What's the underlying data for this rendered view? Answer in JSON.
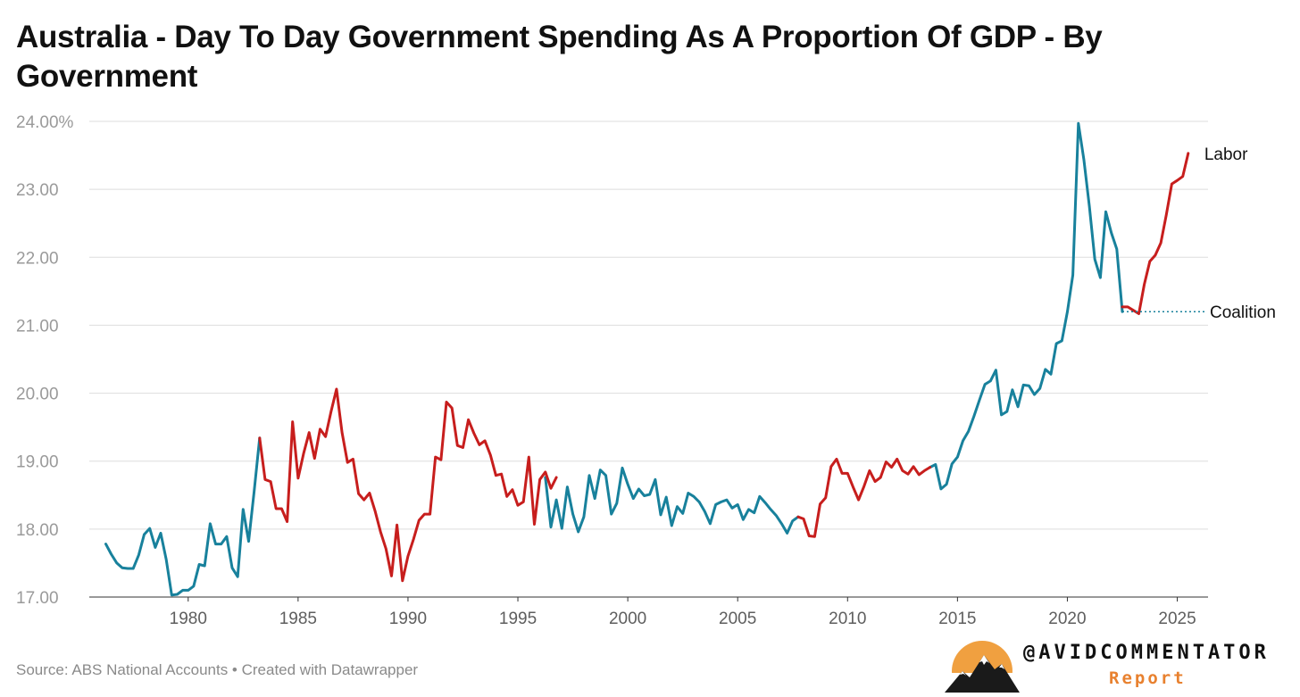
{
  "title": "Australia - Day To Day Government Spending As A Proportion Of GDP - By Government",
  "footer": {
    "source": "Source: ABS National Accounts • Created with Datawrapper"
  },
  "brand": {
    "handle": "@AVIDCOMMENTATOR",
    "sub": "Report",
    "colors": {
      "sun": "#f0a040",
      "mountain": "#1a1a1a",
      "text_accent": "#e8812f"
    }
  },
  "colors": {
    "labor": "#c71e1d",
    "coalition": "#18819c",
    "grid": "#dddddd"
  },
  "chart_data": {
    "type": "line",
    "title": "Australia - Day To Day Government Spending As A Proportion Of GDP - By Government",
    "ylim": [
      17,
      24
    ],
    "xlim": [
      1975.5,
      2026.4
    ],
    "yticks": [
      "24.00%",
      "23.00",
      "22.00",
      "21.00",
      "20.00",
      "19.00",
      "18.00",
      "17.00"
    ],
    "ytick_values": [
      24,
      23,
      22,
      21,
      20,
      19,
      18,
      17
    ],
    "xticks": [
      "1980",
      "1985",
      "1990",
      "1995",
      "2000",
      "2005",
      "2010",
      "2015",
      "2020",
      "2025"
    ],
    "xtick_values": [
      1980,
      1985,
      1990,
      1995,
      2000,
      2005,
      2010,
      2015,
      2020,
      2025
    ],
    "grid": true,
    "legend": "direct labels at right end",
    "series": [
      {
        "name": "Coalition",
        "color": "#18819c",
        "segments": [
          [
            [
              1976.25,
              17.78
            ],
            [
              1976.5,
              17.63
            ],
            [
              1976.75,
              17.5
            ],
            [
              1977.0,
              17.43
            ],
            [
              1977.25,
              17.42
            ],
            [
              1977.5,
              17.42
            ],
            [
              1977.75,
              17.62
            ],
            [
              1978.0,
              17.92
            ],
            [
              1978.25,
              18.01
            ],
            [
              1978.5,
              17.73
            ],
            [
              1978.75,
              17.94
            ],
            [
              1979.0,
              17.55
            ],
            [
              1979.25,
              17.03
            ],
            [
              1979.5,
              17.04
            ],
            [
              1979.75,
              17.1
            ],
            [
              1980.0,
              17.1
            ],
            [
              1980.25,
              17.16
            ],
            [
              1980.5,
              17.48
            ],
            [
              1980.75,
              17.46
            ],
            [
              1981.0,
              18.08
            ],
            [
              1981.25,
              17.78
            ],
            [
              1981.5,
              17.78
            ],
            [
              1981.75,
              17.89
            ],
            [
              1982.0,
              17.43
            ],
            [
              1982.25,
              17.3
            ],
            [
              1982.5,
              18.29
            ],
            [
              1982.75,
              17.82
            ],
            [
              1983.0,
              18.55
            ],
            [
              1983.25,
              19.34
            ]
          ],
          [
            [
              1996.25,
              18.76
            ],
            [
              1996.5,
              18.03
            ],
            [
              1996.75,
              18.43
            ],
            [
              1997.0,
              18.01
            ],
            [
              1997.25,
              18.62
            ],
            [
              1997.5,
              18.22
            ],
            [
              1997.75,
              17.96
            ],
            [
              1998.0,
              18.18
            ],
            [
              1998.25,
              18.79
            ],
            [
              1998.5,
              18.45
            ],
            [
              1998.75,
              18.87
            ],
            [
              1999.0,
              18.79
            ],
            [
              1999.25,
              18.22
            ],
            [
              1999.5,
              18.38
            ],
            [
              1999.75,
              18.9
            ],
            [
              2000.0,
              18.66
            ],
            [
              2000.25,
              18.45
            ],
            [
              2000.5,
              18.59
            ],
            [
              2000.75,
              18.49
            ],
            [
              2001.0,
              18.51
            ],
            [
              2001.25,
              18.73
            ],
            [
              2001.5,
              18.21
            ],
            [
              2001.75,
              18.47
            ],
            [
              2002.0,
              18.05
            ],
            [
              2002.25,
              18.33
            ],
            [
              2002.5,
              18.23
            ],
            [
              2002.75,
              18.53
            ],
            [
              2003.0,
              18.48
            ],
            [
              2003.25,
              18.4
            ],
            [
              2003.5,
              18.26
            ],
            [
              2003.75,
              18.08
            ],
            [
              2004.0,
              18.36
            ],
            [
              2004.25,
              18.4
            ],
            [
              2004.5,
              18.43
            ],
            [
              2004.75,
              18.31
            ],
            [
              2005.0,
              18.36
            ],
            [
              2005.25,
              18.14
            ],
            [
              2005.5,
              18.29
            ],
            [
              2005.75,
              18.24
            ],
            [
              2006.0,
              18.48
            ],
            [
              2006.25,
              18.39
            ],
            [
              2006.5,
              18.29
            ],
            [
              2006.75,
              18.2
            ],
            [
              2007.0,
              18.08
            ],
            [
              2007.25,
              17.94
            ],
            [
              2007.5,
              18.12
            ],
            [
              2007.75,
              18.18
            ]
          ],
          [
            [
              2013.75,
              18.91
            ],
            [
              2014.0,
              18.95
            ],
            [
              2014.25,
              18.59
            ],
            [
              2014.5,
              18.66
            ],
            [
              2014.75,
              18.96
            ],
            [
              2015.0,
              19.06
            ],
            [
              2015.25,
              19.3
            ],
            [
              2015.5,
              19.44
            ],
            [
              2015.75,
              19.66
            ],
            [
              2016.0,
              19.9
            ],
            [
              2016.25,
              20.13
            ],
            [
              2016.5,
              20.18
            ],
            [
              2016.75,
              20.34
            ],
            [
              2017.0,
              19.68
            ],
            [
              2017.25,
              19.73
            ],
            [
              2017.5,
              20.05
            ],
            [
              2017.75,
              19.8
            ],
            [
              2018.0,
              20.12
            ],
            [
              2018.25,
              20.11
            ],
            [
              2018.5,
              19.98
            ],
            [
              2018.75,
              20.07
            ],
            [
              2019.0,
              20.35
            ],
            [
              2019.25,
              20.28
            ],
            [
              2019.5,
              20.73
            ],
            [
              2019.75,
              20.77
            ],
            [
              2020.0,
              21.2
            ],
            [
              2020.25,
              21.74
            ],
            [
              2020.5,
              23.97
            ],
            [
              2020.75,
              23.44
            ],
            [
              2021.0,
              22.75
            ],
            [
              2021.25,
              21.97
            ],
            [
              2021.5,
              21.7
            ],
            [
              2021.75,
              22.67
            ],
            [
              2022.0,
              22.36
            ],
            [
              2022.25,
              22.12
            ],
            [
              2022.5,
              21.2
            ]
          ]
        ]
      },
      {
        "name": "Labor",
        "color": "#c71e1d",
        "segments": [
          [
            [
              1983.25,
              19.34
            ],
            [
              1983.5,
              18.73
            ],
            [
              1983.75,
              18.7
            ],
            [
              1984.0,
              18.3
            ],
            [
              1984.25,
              18.3
            ],
            [
              1984.5,
              18.11
            ],
            [
              1984.75,
              19.58
            ],
            [
              1985.0,
              18.75
            ],
            [
              1985.25,
              19.11
            ],
            [
              1985.5,
              19.42
            ],
            [
              1985.75,
              19.04
            ],
            [
              1986.0,
              19.47
            ],
            [
              1986.25,
              19.36
            ],
            [
              1986.5,
              19.73
            ],
            [
              1986.75,
              20.06
            ],
            [
              1987.0,
              19.42
            ],
            [
              1987.25,
              18.98
            ],
            [
              1987.5,
              19.03
            ],
            [
              1987.75,
              18.52
            ],
            [
              1988.0,
              18.43
            ],
            [
              1988.25,
              18.53
            ],
            [
              1988.5,
              18.27
            ],
            [
              1988.75,
              17.96
            ],
            [
              1989.0,
              17.71
            ],
            [
              1989.25,
              17.31
            ],
            [
              1989.5,
              18.06
            ],
            [
              1989.75,
              17.24
            ],
            [
              1990.0,
              17.6
            ],
            [
              1990.25,
              17.85
            ],
            [
              1990.5,
              18.13
            ],
            [
              1990.75,
              18.22
            ],
            [
              1991.0,
              18.22
            ],
            [
              1991.25,
              19.06
            ],
            [
              1991.5,
              19.02
            ],
            [
              1991.75,
              19.87
            ],
            [
              1992.0,
              19.78
            ],
            [
              1992.25,
              19.23
            ],
            [
              1992.5,
              19.2
            ],
            [
              1992.75,
              19.61
            ],
            [
              1993.0,
              19.41
            ],
            [
              1993.25,
              19.24
            ],
            [
              1993.5,
              19.3
            ],
            [
              1993.75,
              19.09
            ],
            [
              1994.0,
              18.79
            ],
            [
              1994.25,
              18.81
            ],
            [
              1994.5,
              18.48
            ],
            [
              1994.75,
              18.58
            ],
            [
              1995.0,
              18.35
            ],
            [
              1995.25,
              18.4
            ],
            [
              1995.5,
              19.06
            ],
            [
              1995.75,
              18.07
            ],
            [
              1996.0,
              18.73
            ],
            [
              1996.25,
              18.84
            ],
            [
              1996.5,
              18.6
            ],
            [
              1996.75,
              18.76
            ]
          ],
          [
            [
              2007.75,
              18.18
            ],
            [
              2008.0,
              18.15
            ],
            [
              2008.25,
              17.9
            ],
            [
              2008.5,
              17.89
            ],
            [
              2008.75,
              18.37
            ],
            [
              2009.0,
              18.46
            ],
            [
              2009.25,
              18.92
            ],
            [
              2009.5,
              19.03
            ],
            [
              2009.75,
              18.82
            ],
            [
              2010.0,
              18.82
            ],
            [
              2010.25,
              18.62
            ],
            [
              2010.5,
              18.43
            ],
            [
              2010.75,
              18.63
            ],
            [
              2011.0,
              18.86
            ],
            [
              2011.25,
              18.7
            ],
            [
              2011.5,
              18.76
            ],
            [
              2011.75,
              18.99
            ],
            [
              2012.0,
              18.91
            ],
            [
              2012.25,
              19.03
            ],
            [
              2012.5,
              18.86
            ],
            [
              2012.75,
              18.81
            ],
            [
              2013.0,
              18.92
            ],
            [
              2013.25,
              18.8
            ],
            [
              2013.5,
              18.86
            ],
            [
              2013.75,
              18.91
            ]
          ],
          [
            [
              2022.5,
              21.27
            ],
            [
              2022.75,
              21.27
            ],
            [
              2023.0,
              21.22
            ],
            [
              2023.25,
              21.17
            ],
            [
              2023.5,
              21.6
            ],
            [
              2023.75,
              21.94
            ],
            [
              2024.0,
              22.03
            ],
            [
              2024.25,
              22.21
            ],
            [
              2024.5,
              22.62
            ],
            [
              2024.75,
              23.08
            ],
            [
              2025.0,
              23.13
            ],
            [
              2025.25,
              23.19
            ],
            [
              2025.5,
              23.53
            ]
          ]
        ]
      }
    ],
    "annotations": [
      {
        "label": "Labor",
        "x": 2025.5,
        "y": 23.53
      },
      {
        "label": "Coalition",
        "x": 2022.5,
        "y": 21.2
      }
    ]
  }
}
